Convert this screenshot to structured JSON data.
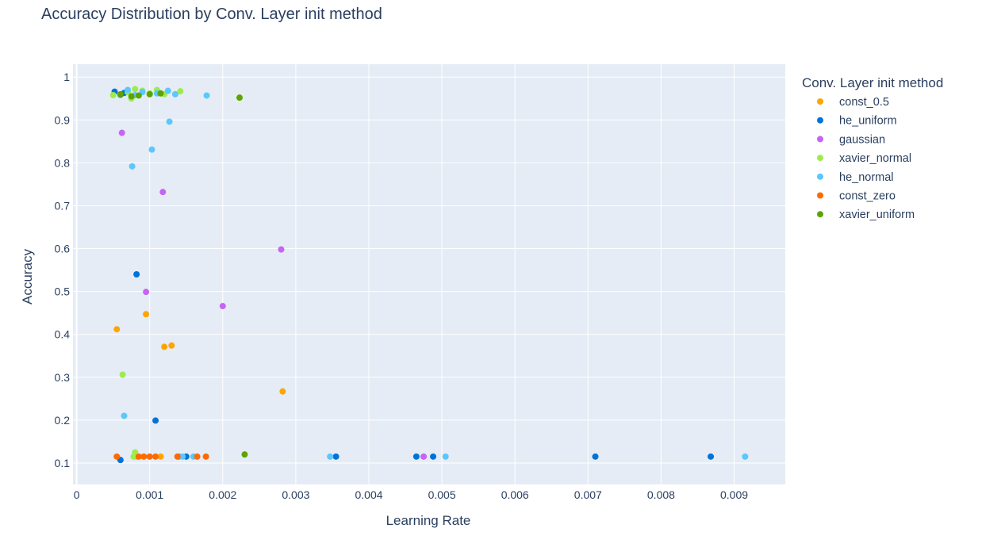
{
  "chart_data": {
    "type": "scatter",
    "title": "Accuracy Distribution by Conv. Layer init method",
    "xlabel": "Learning Rate",
    "ylabel": "Accuracy",
    "xlim": [
      -5e-05,
      0.0097
    ],
    "ylim": [
      0.05,
      1.03
    ],
    "x_ticks": [
      0,
      0.001,
      0.002,
      0.003,
      0.004,
      0.005,
      0.006,
      0.007,
      0.008,
      0.009
    ],
    "x_tick_labels": [
      "0",
      "0.001",
      "0.002",
      "0.003",
      "0.004",
      "0.005",
      "0.006",
      "0.007",
      "0.008",
      "0.009"
    ],
    "y_ticks": [
      0.1,
      0.2,
      0.3,
      0.4,
      0.5,
      0.6,
      0.7,
      0.8,
      0.9,
      1
    ],
    "y_tick_labels": [
      "0.1",
      "0.2",
      "0.3",
      "0.4",
      "0.5",
      "0.6",
      "0.7",
      "0.8",
      "0.9",
      "1"
    ],
    "grid": true,
    "legend_title": "Conv. Layer init method",
    "legend_position": "right",
    "series": [
      {
        "name": "const_0.5",
        "color": "#FFA500",
        "points": [
          [
            0.00055,
            0.412
          ],
          [
            0.00095,
            0.447
          ],
          [
            0.0012,
            0.371
          ],
          [
            0.0013,
            0.374
          ],
          [
            0.00282,
            0.267
          ],
          [
            0.00082,
            0.115
          ],
          [
            0.00115,
            0.115
          ]
        ]
      },
      {
        "name": "he_uniform",
        "color": "#0073D8",
        "points": [
          [
            0.00082,
            0.54
          ],
          [
            0.00108,
            0.199
          ],
          [
            0.0006,
            0.107
          ],
          [
            0.00052,
            0.966
          ],
          [
            0.0006,
            0.959
          ],
          [
            0.00065,
            0.963
          ],
          [
            0.0015,
            0.115
          ],
          [
            0.00355,
            0.115
          ],
          [
            0.00465,
            0.115
          ],
          [
            0.00488,
            0.115
          ],
          [
            0.0071,
            0.115
          ],
          [
            0.00868,
            0.115
          ]
        ]
      },
      {
        "name": "gaussian",
        "color": "#C763F5",
        "points": [
          [
            0.00062,
            0.87
          ],
          [
            0.00118,
            0.732
          ],
          [
            0.0028,
            0.598
          ],
          [
            0.00095,
            0.499
          ],
          [
            0.002,
            0.466
          ],
          [
            0.00475,
            0.115
          ],
          [
            0.0014,
            0.115
          ]
        ]
      },
      {
        "name": "xavier_normal",
        "color": "#9EEB4C",
        "points": [
          [
            0.00063,
            0.306
          ],
          [
            0.0008,
            0.125
          ],
          [
            0.00078,
            0.115
          ],
          [
            0.0005,
            0.958
          ],
          [
            0.0007,
            0.965
          ],
          [
            0.0008,
            0.972
          ],
          [
            0.0009,
            0.968
          ],
          [
            0.001,
            0.962
          ],
          [
            0.00075,
            0.95
          ],
          [
            0.0011,
            0.97
          ],
          [
            0.00142,
            0.967
          ],
          [
            0.0012,
            0.96
          ]
        ]
      },
      {
        "name": "he_normal",
        "color": "#5AC8FA",
        "points": [
          [
            0.00178,
            0.957
          ],
          [
            0.00127,
            0.896
          ],
          [
            0.00103,
            0.831
          ],
          [
            0.00076,
            0.792
          ],
          [
            0.00065,
            0.21
          ],
          [
            0.00347,
            0.115
          ],
          [
            0.00505,
            0.115
          ],
          [
            0.00915,
            0.115
          ],
          [
            0.00145,
            0.115
          ],
          [
            0.0016,
            0.115
          ],
          [
            0.0007,
            0.97
          ],
          [
            0.0009,
            0.965
          ],
          [
            0.0011,
            0.962
          ],
          [
            0.00125,
            0.968
          ],
          [
            0.00135,
            0.96
          ],
          [
            0.0008,
            0.958
          ]
        ]
      },
      {
        "name": "const_zero",
        "color": "#FF6A00",
        "points": [
          [
            0.00055,
            0.115
          ],
          [
            0.00085,
            0.115
          ],
          [
            0.00092,
            0.115
          ],
          [
            0.001,
            0.115
          ],
          [
            0.00108,
            0.115
          ],
          [
            0.00165,
            0.115
          ],
          [
            0.00177,
            0.115
          ],
          [
            0.00138,
            0.115
          ]
        ]
      },
      {
        "name": "xavier_uniform",
        "color": "#5FA300",
        "points": [
          [
            0.00223,
            0.952
          ],
          [
            0.0023,
            0.12
          ],
          [
            0.0006,
            0.96
          ],
          [
            0.00075,
            0.955
          ],
          [
            0.001,
            0.96
          ],
          [
            0.00115,
            0.962
          ],
          [
            0.00085,
            0.957
          ]
        ]
      }
    ]
  }
}
